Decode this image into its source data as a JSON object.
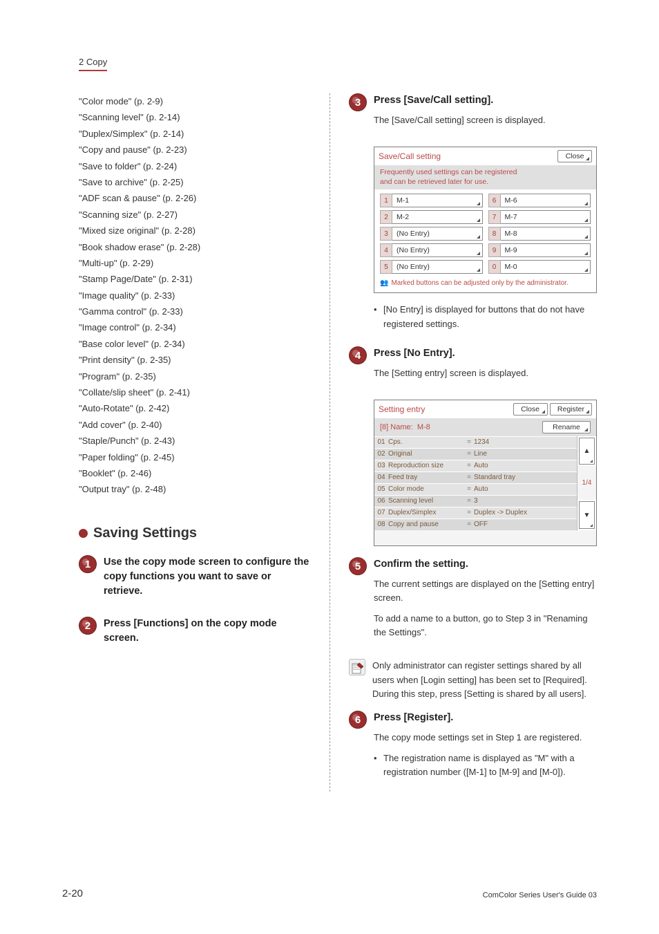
{
  "chapter": "2 Copy",
  "refs": [
    "\"Color mode\" (p. 2-9)",
    "\"Scanning level\" (p. 2-14)",
    "\"Duplex/Simplex\" (p. 2-14)",
    "\"Copy and pause\" (p. 2-23)",
    "\"Save to folder\" (p. 2-24)",
    "\"Save to archive\" (p. 2-25)",
    "\"ADF scan & pause\" (p. 2-26)",
    "\"Scanning size\" (p. 2-27)",
    "\"Mixed size original\" (p. 2-28)",
    "\"Book shadow erase\" (p. 2-28)",
    "\"Multi-up\" (p. 2-29)",
    "\"Stamp Page/Date\" (p. 2-31)",
    "\"Image quality\" (p. 2-33)",
    "\"Gamma control\" (p. 2-33)",
    "\"Image control\" (p. 2-34)",
    "\"Base color level\" (p. 2-34)",
    "\"Print density\" (p. 2-35)",
    "\"Program\" (p. 2-35)",
    "\"Collate/slip sheet\" (p. 2-41)",
    "\"Auto-Rotate\" (p. 2-42)",
    "\"Add cover\" (p. 2-40)",
    "\"Staple/Punch\" (p. 2-43)",
    "\"Paper folding\" (p. 2-45)",
    "\"Booklet\" (p. 2-46)",
    "\"Output tray\" (p. 2-48)"
  ],
  "section_title": "Saving Settings",
  "steps": {
    "1": {
      "title": "Use the copy mode screen to configure the copy functions you want to save or retrieve."
    },
    "2": {
      "title": "Press [Functions] on the copy mode screen."
    },
    "3": {
      "title": "Press [Save/Call setting].",
      "text": "The [Save/Call setting] screen is displayed.",
      "note": "[No Entry] is displayed for buttons that do not have registered settings."
    },
    "4": {
      "title": "Press [No Entry].",
      "text": "The [Setting entry] screen is displayed."
    },
    "5": {
      "title": "Confirm the setting.",
      "text1": "The current settings are displayed on the [Setting entry] screen.",
      "text2": "To add a name to a button, go to Step 3 in \"Renaming the Settings\"."
    },
    "5_info": "Only administrator can register settings shared by all users when [Login setting] has been set to [Required]. During this step, press [Setting is shared by all users].",
    "6": {
      "title": "Press [Register].",
      "text": "The copy mode settings set in Step 1 are registered.",
      "note": "The registration name is displayed as \"M\" with a registration number ([M-1] to [M-9] and [M-0])."
    }
  },
  "panel1": {
    "title": "Save/Call setting",
    "close": "Close",
    "subhead": "Frequently used settings can be registered\nand can be retrieved later for use.",
    "left": [
      {
        "n": "1",
        "label": "M-1"
      },
      {
        "n": "2",
        "label": "M-2"
      },
      {
        "n": "3",
        "label": "(No Entry)"
      },
      {
        "n": "4",
        "label": "(No Entry)"
      },
      {
        "n": "5",
        "label": "(No Entry)"
      }
    ],
    "right": [
      {
        "n": "6",
        "label": "M-6"
      },
      {
        "n": "7",
        "label": "M-7"
      },
      {
        "n": "8",
        "label": "M-8"
      },
      {
        "n": "9",
        "label": "M-9"
      },
      {
        "n": "0",
        "label": "M-0"
      }
    ],
    "footer": "Marked buttons can be adjusted only by the administrator."
  },
  "panel2": {
    "title": "Setting entry",
    "close": "Close",
    "register": "Register",
    "name_prefix": "[8] Name:",
    "name_value": "M-8",
    "rename": "Rename",
    "rows": [
      {
        "n": "01",
        "l": "Cps.",
        "v": "1234"
      },
      {
        "n": "02",
        "l": "Original",
        "v": "Line"
      },
      {
        "n": "03",
        "l": "Reproduction size",
        "v": "Auto"
      },
      {
        "n": "04",
        "l": "Feed tray",
        "v": "Standard tray"
      },
      {
        "n": "05",
        "l": "Color mode",
        "v": "Auto"
      },
      {
        "n": "06",
        "l": "Scanning level",
        "v": "3"
      },
      {
        "n": "07",
        "l": "Duplex/Simplex",
        "v": "Duplex -> Duplex"
      },
      {
        "n": "08",
        "l": "Copy and pause",
        "v": "OFF"
      }
    ],
    "page": "1/4"
  },
  "page_number": "2-20",
  "footer_right": "ComColor Series User's Guide 03"
}
